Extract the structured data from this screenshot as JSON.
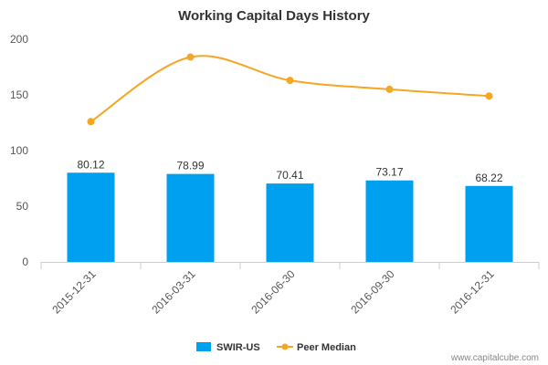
{
  "chart_data": {
    "type": "bar",
    "title": "Working Capital Days History",
    "categories": [
      "2015-12-31",
      "2016-03-31",
      "2016-06-30",
      "2016-09-30",
      "2016-12-31"
    ],
    "series": [
      {
        "name": "SWIR-US",
        "type": "bar",
        "values": [
          80.12,
          78.99,
          70.41,
          73.17,
          68.22
        ],
        "labels": [
          "80.12",
          "78.99",
          "70.41",
          "73.17",
          "68.22"
        ],
        "color": "#00a0f0"
      },
      {
        "name": "Peer Median",
        "type": "line",
        "values": [
          126,
          184,
          163,
          155,
          149
        ],
        "color": "#f5a623"
      }
    ],
    "yticks": [
      0,
      50,
      100,
      150,
      200
    ],
    "ylim": [
      0,
      200
    ],
    "grid": false,
    "legend": "bottom-center"
  },
  "credit": "www.capitalcube.com"
}
